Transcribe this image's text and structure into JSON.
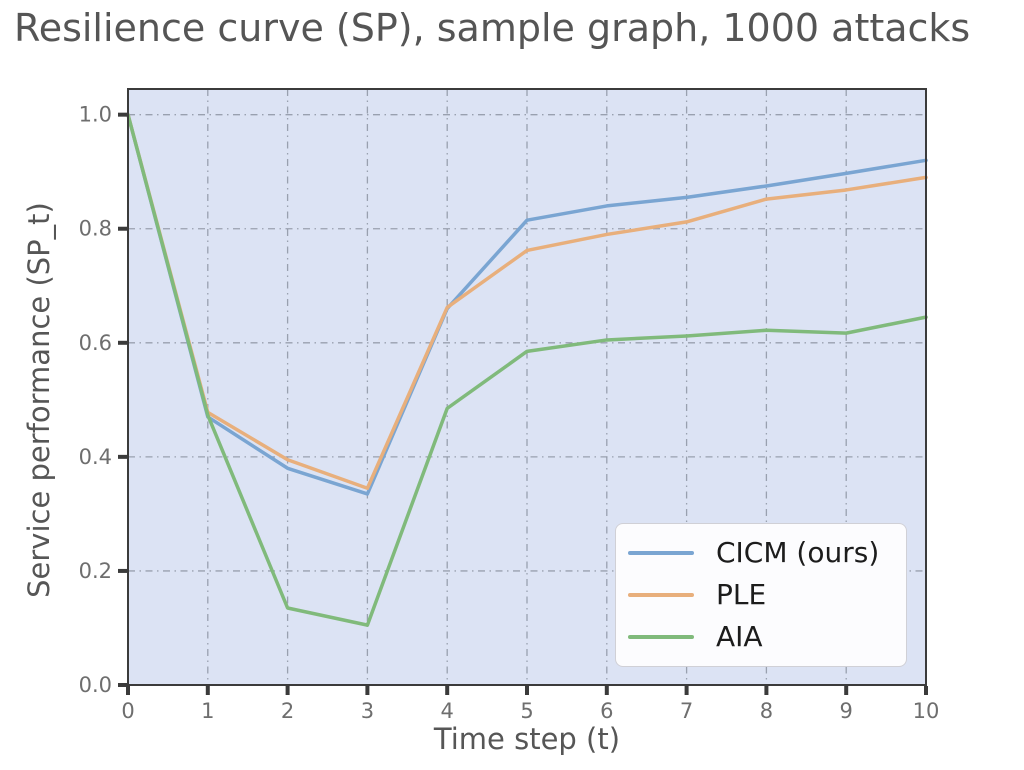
{
  "chart_data": {
    "type": "line",
    "title": "Resilience curve (SP), sample graph, 1000 attacks",
    "xlabel": "Time step (t)",
    "ylabel": "Service performance (SP_t)",
    "x": [
      0,
      1,
      2,
      3,
      4,
      5,
      6,
      7,
      8,
      9,
      10
    ],
    "series": [
      {
        "name": "CICM (ours)",
        "color": "#7aa5d2",
        "values": [
          1.0,
          0.47,
          0.38,
          0.335,
          0.66,
          0.815,
          0.84,
          0.855,
          0.875,
          0.897,
          0.92
        ]
      },
      {
        "name": "PLE",
        "color": "#e8af7c",
        "values": [
          1.0,
          0.478,
          0.395,
          0.345,
          0.662,
          0.762,
          0.79,
          0.812,
          0.852,
          0.868,
          0.89
        ]
      },
      {
        "name": "AIA",
        "color": "#80ba7b",
        "values": [
          1.0,
          0.473,
          0.135,
          0.105,
          0.485,
          0.585,
          0.605,
          0.612,
          0.622,
          0.617,
          0.645
        ]
      }
    ],
    "xticks": [
      "0",
      "1",
      "2",
      "3",
      "4",
      "5",
      "6",
      "7",
      "8",
      "9",
      "10"
    ],
    "yticks": [
      "0.0",
      "0.2",
      "0.4",
      "0.6",
      "0.8",
      "1.0"
    ],
    "ytick_values": [
      0,
      0.2,
      0.4,
      0.6,
      0.8,
      1.0
    ],
    "xlim": [
      0,
      10
    ],
    "ylim": [
      0,
      1.045
    ],
    "grid": "dash-dot",
    "legend_position": "lower right",
    "colors": {
      "plot_bg": "#dce3f4",
      "grid": "#8e95a3",
      "spine": "#3b3b3b",
      "tick": "#3b3b3b",
      "tick_label": "#6e6e6e",
      "axis_label": "#565656",
      "title": "#555555",
      "legend_bg": "#fcfcfe",
      "legend_border": "#d0d0d6",
      "legend_text": "#1c1c1c"
    }
  }
}
